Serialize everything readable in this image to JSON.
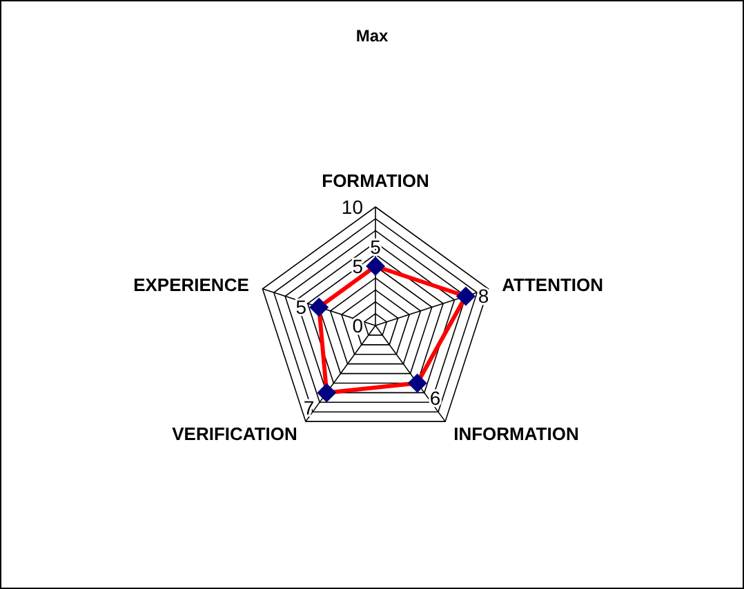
{
  "chart_data": {
    "type": "radar",
    "title": "Max",
    "categories": [
      "FORMATION",
      "ATTENTION",
      "INFORMATION",
      "VERIFICATION",
      "EXPERIENCE"
    ],
    "series": [
      {
        "color": "#ff0000",
        "values": [
          5,
          8,
          6,
          7,
          5
        ]
      }
    ],
    "ylim": [
      0,
      10
    ],
    "yticks": [
      0,
      5,
      10
    ],
    "grid": true,
    "marker": "diamond",
    "data_labels": true
  }
}
